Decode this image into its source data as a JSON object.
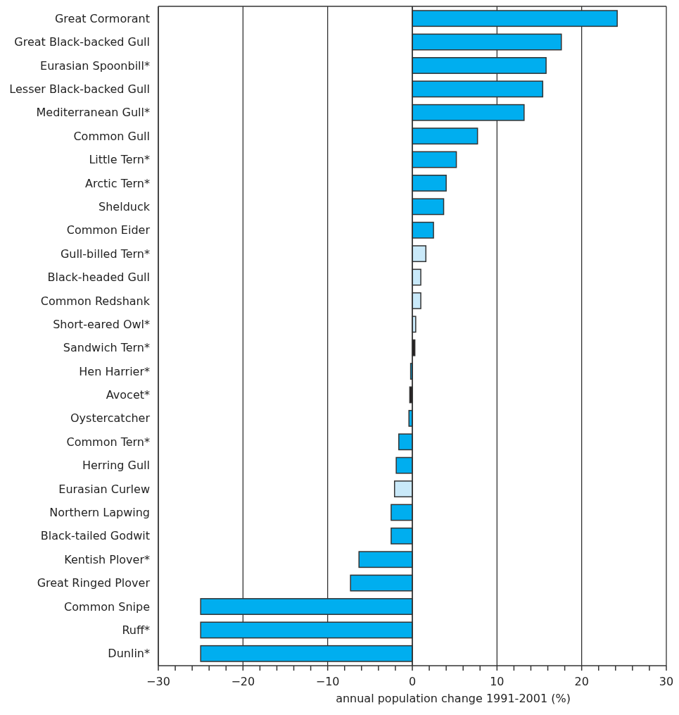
{
  "chart_data": {
    "type": "bar",
    "orientation": "horizontal",
    "xlabel": "annual population change 1991-2001 (%)",
    "categories": [
      "Great Cormorant",
      "Great Black-backed Gull",
      "Eurasian Spoonbill*",
      "Lesser Black-backed Gull",
      "Mediterranean Gull*",
      "Common Gull",
      "Little Tern*",
      "Arctic Tern*",
      "Shelduck",
      "Common Eider",
      "Gull-billed Tern*",
      "Black-headed Gull",
      "Common Redshank",
      "Short-eared Owl*",
      "Sandwich Tern*",
      "Hen Harrier*",
      "Avocet*",
      "Oystercatcher",
      "Common Tern*",
      "Herring Gull",
      "Eurasian Curlew",
      "Northern Lapwing",
      "Black-tailed Godwit",
      "Kentish Plover*",
      "Great Ringed Plover",
      "Common Snipe",
      "Ruff*",
      "Dunlin*"
    ],
    "values": [
      24.2,
      17.6,
      15.8,
      15.4,
      13.2,
      7.7,
      5.2,
      4.0,
      3.7,
      2.5,
      1.6,
      1.0,
      1.0,
      0.4,
      0.3,
      -0.2,
      -0.3,
      -0.4,
      -1.6,
      -1.9,
      -2.1,
      -2.5,
      -2.5,
      -6.3,
      -7.3,
      -25,
      -25,
      -25
    ],
    "colors": [
      "#00aeef",
      "#00aeef",
      "#00aeef",
      "#00aeef",
      "#00aeef",
      "#00aeef",
      "#00aeef",
      "#00aeef",
      "#00aeef",
      "#00aeef",
      "#c9e9f9",
      "#c9e9f9",
      "#c9e9f9",
      "#c9e9f9",
      "#231f20",
      "#00aeef",
      "#231f20",
      "#00aeef",
      "#00aeef",
      "#00aeef",
      "#c9e9f9",
      "#00aeef",
      "#00aeef",
      "#00aeef",
      "#00aeef",
      "#00aeef",
      "#00aeef",
      "#00aeef"
    ],
    "xlim": [
      -30,
      30
    ],
    "xticks": [
      -30,
      {
        "value": -28,
        "label": null
      },
      {
        "value": -26,
        "label": null
      },
      {
        "value": -24,
        "label": null
      },
      {
        "value": -22,
        "label": null
      },
      -20,
      {
        "value": -18,
        "label": null
      },
      {
        "value": -16,
        "label": null
      },
      {
        "value": -14,
        "label": null
      },
      {
        "value": -12,
        "label": null
      },
      -10,
      {
        "value": -8,
        "label": null
      },
      {
        "value": -6,
        "label": null
      },
      {
        "value": -4,
        "label": null
      },
      {
        "value": -2,
        "label": null
      },
      0,
      {
        "value": 2,
        "label": null
      },
      {
        "value": 4,
        "label": null
      },
      {
        "value": 6,
        "label": null
      },
      {
        "value": 8,
        "label": null
      },
      10,
      {
        "value": 12,
        "label": null
      },
      {
        "value": 14,
        "label": null
      },
      {
        "value": 16,
        "label": null
      },
      {
        "value": 18,
        "label": null
      },
      20,
      {
        "value": 22,
        "label": null
      },
      {
        "value": 24,
        "label": null
      },
      {
        "value": 26,
        "label": null
      },
      {
        "value": 28,
        "label": null
      },
      30
    ],
    "grid": "x"
  }
}
